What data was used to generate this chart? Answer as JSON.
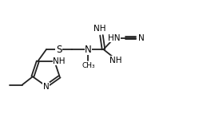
{
  "bg_color": "#ffffff",
  "line_color": "#222222",
  "line_width": 1.3,
  "font_size": 7.5,
  "xlim": [
    0,
    10
  ],
  "ylim": [
    0,
    6.5
  ]
}
